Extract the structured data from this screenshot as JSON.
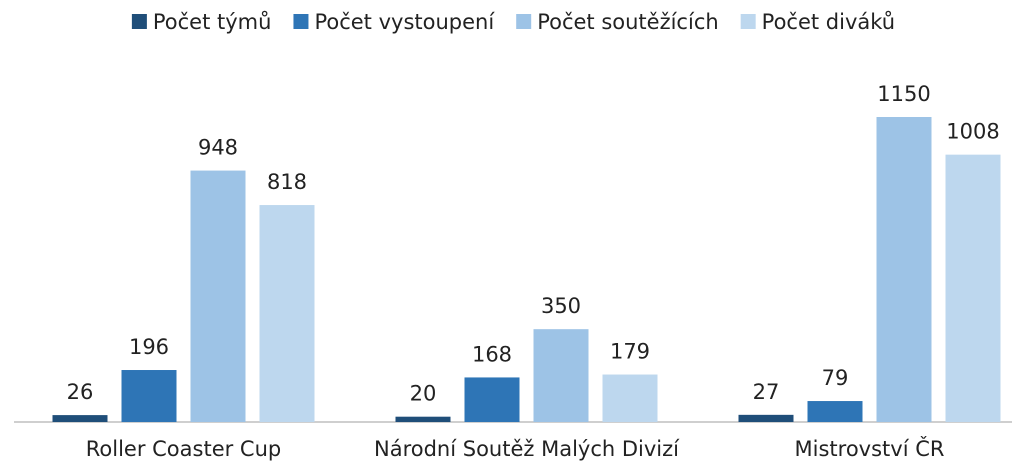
{
  "chart_data": {
    "type": "bar",
    "categories": [
      "Roller Coaster Cup",
      "Národní Soutěž Malých Divizí",
      "Mistrovství ČR"
    ],
    "series": [
      {
        "name": "Počet týmů",
        "color": "#1f4e79",
        "values": [
          26,
          20,
          27
        ]
      },
      {
        "name": "Počet vystoupení",
        "color": "#2e75b6",
        "values": [
          196,
          168,
          79
        ]
      },
      {
        "name": "Počet soutěžících",
        "color": "#9dc3e6",
        "values": [
          948,
          350,
          1150
        ]
      },
      {
        "name": "Počet diváků",
        "color": "#bdd7ee",
        "values": [
          818,
          179,
          1008
        ]
      }
    ],
    "legend": "top"
  }
}
